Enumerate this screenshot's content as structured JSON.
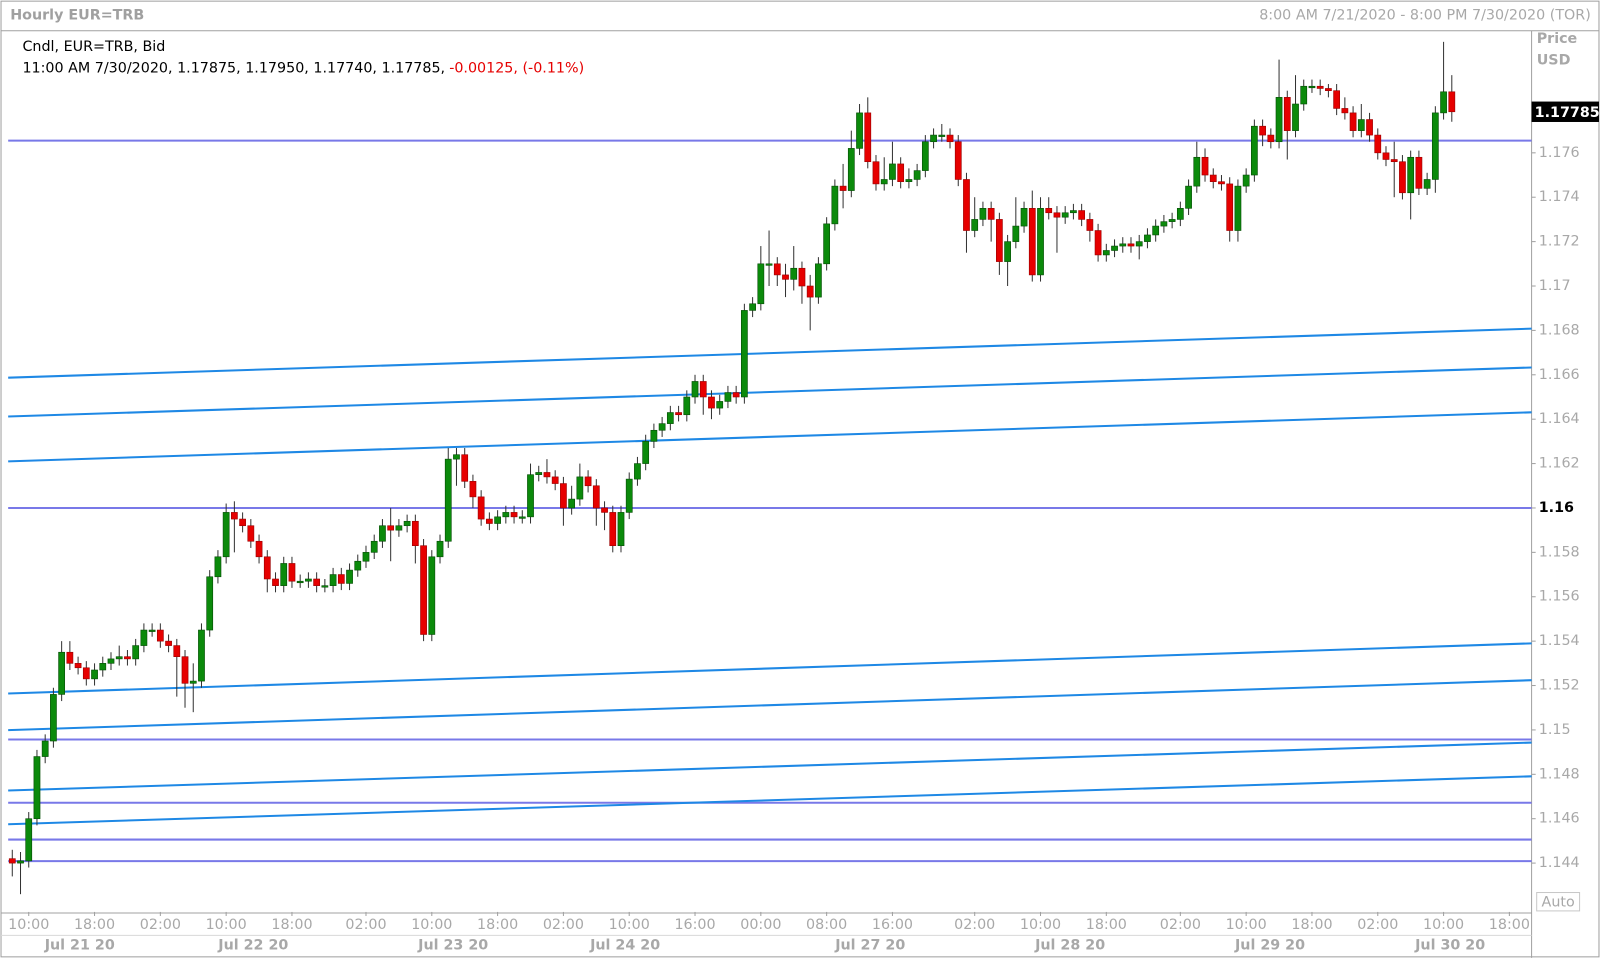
{
  "chart_data": {
    "type": "candlestick",
    "title": "Hourly EUR=TRB",
    "range": "8:00 AM 7/21/2020 - 8:00 PM 7/30/2020 (TOR)",
    "legend_line1": "Cndl, EUR=TRB, Bid",
    "legend_line2": "11:00 AM 7/30/2020, 1.17875, 1.17950, 1.17740, 1.17785,",
    "legend_change": "-0.00125, (-0.11%)",
    "axis_title": "Price",
    "axis_unit": "USD",
    "auto_button": "Auto",
    "up_color": "#0b8a0b",
    "down_color": "#e60000",
    "hline_color": "#7878e8",
    "trend_color": "#1e88e5",
    "ylim": [
      1.1418,
      1.1815
    ],
    "yticks": [
      1.144,
      1.146,
      1.148,
      1.15,
      1.152,
      1.154,
      1.156,
      1.158,
      1.16,
      1.162,
      1.164,
      1.166,
      1.168,
      1.17,
      1.172,
      1.174,
      1.176
    ],
    "xlim": [
      -0.5,
      184.7
    ],
    "xticks": [
      {
        "value": 2,
        "label": "10:00"
      },
      {
        "value": 10,
        "label": "18:00"
      },
      {
        "value": 18,
        "label": "02:00"
      },
      {
        "value": 26,
        "label": "10:00"
      },
      {
        "value": 34,
        "label": "18:00"
      },
      {
        "value": 43,
        "label": "02:00"
      },
      {
        "value": 51,
        "label": "10:00"
      },
      {
        "value": 59,
        "label": "18:00"
      },
      {
        "value": 67,
        "label": "02:00"
      },
      {
        "value": 75,
        "label": "10:00"
      },
      {
        "value": 83,
        "label": "16:00"
      },
      {
        "value": 91,
        "label": "00:00"
      },
      {
        "value": 99,
        "label": "08:00"
      },
      {
        "value": 107,
        "label": "16:00"
      },
      {
        "value": 117,
        "label": "02:00"
      },
      {
        "value": 125,
        "label": "10:00"
      },
      {
        "value": 133,
        "label": "18:00"
      },
      {
        "value": 142,
        "label": "02:00"
      },
      {
        "value": 150,
        "label": "10:00"
      },
      {
        "value": 158,
        "label": "18:00"
      },
      {
        "value": 166,
        "label": "02:00"
      },
      {
        "value": 174,
        "label": "10:00"
      },
      {
        "value": 182,
        "label": "18:00"
      }
    ],
    "date_ticks": [
      {
        "value": 8.2,
        "label": "Jul 21 20"
      },
      {
        "value": 29.3,
        "label": "Jul 22 20"
      },
      {
        "value": 53.6,
        "label": "Jul 23 20"
      },
      {
        "value": 74.5,
        "label": "Jul 24 20"
      },
      {
        "value": 104.3,
        "label": "Jul 27 20"
      },
      {
        "value": 128.6,
        "label": "Jul 28 20"
      },
      {
        "value": 152.9,
        "label": "Jul 29 20"
      },
      {
        "value": 174.8,
        "label": "Jul 30 20"
      }
    ],
    "horizontal_lines": [
      1.17655,
      1.16,
      1.14957,
      1.14672,
      1.14506,
      1.14409
    ],
    "trend_lines": [
      [
        1.16587,
        1.16808
      ],
      [
        1.16412,
        1.16633
      ],
      [
        1.1621,
        1.16431
      ],
      [
        1.15164,
        1.1539
      ],
      [
        1.14999,
        1.15224
      ],
      [
        1.14727,
        1.14943
      ],
      [
        1.14575,
        1.14791
      ]
    ],
    "ohlc": [
      [
        1.1442,
        1.1446,
        1.1434,
        1.144
      ],
      [
        1.144,
        1.1445,
        1.1426,
        1.1441
      ],
      [
        1.1441,
        1.1463,
        1.1438,
        1.146
      ],
      [
        1.146,
        1.1491,
        1.1457,
        1.1488
      ],
      [
        1.1488,
        1.1498,
        1.1485,
        1.1495
      ],
      [
        1.1495,
        1.1519,
        1.1492,
        1.1516
      ],
      [
        1.1516,
        1.154,
        1.1513,
        1.1535
      ],
      [
        1.1535,
        1.154,
        1.1527,
        1.153
      ],
      [
        1.153,
        1.1533,
        1.1525,
        1.1528
      ],
      [
        1.1528,
        1.1531,
        1.152,
        1.1523
      ],
      [
        1.1523,
        1.153,
        1.152,
        1.1527
      ],
      [
        1.1527,
        1.1533,
        1.1524,
        1.153
      ],
      [
        1.153,
        1.1535,
        1.1527,
        1.1532
      ],
      [
        1.1532,
        1.1538,
        1.1529,
        1.1533
      ],
      [
        1.1533,
        1.1536,
        1.1529,
        1.1532
      ],
      [
        1.1532,
        1.1541,
        1.1529,
        1.1538
      ],
      [
        1.1538,
        1.1548,
        1.1535,
        1.1545
      ],
      [
        1.1545,
        1.1548,
        1.1542,
        1.1545
      ],
      [
        1.1545,
        1.1548,
        1.1537,
        1.154
      ],
      [
        1.154,
        1.1543,
        1.1535,
        1.1538
      ],
      [
        1.1538,
        1.1541,
        1.1515,
        1.1533
      ],
      [
        1.1533,
        1.1536,
        1.151,
        1.1521
      ],
      [
        1.1521,
        1.153,
        1.1508,
        1.1522
      ],
      [
        1.1522,
        1.1548,
        1.1519,
        1.1545
      ],
      [
        1.1545,
        1.1572,
        1.1542,
        1.1569
      ],
      [
        1.1569,
        1.1581,
        1.1566,
        1.1578
      ],
      [
        1.1578,
        1.1602,
        1.1575,
        1.1598
      ],
      [
        1.1598,
        1.1603,
        1.158,
        1.1595
      ],
      [
        1.1595,
        1.1598,
        1.1589,
        1.1592
      ],
      [
        1.1592,
        1.1595,
        1.1582,
        1.1585
      ],
      [
        1.1585,
        1.1588,
        1.1575,
        1.1578
      ],
      [
        1.1578,
        1.1581,
        1.1562,
        1.1568
      ],
      [
        1.1568,
        1.1571,
        1.1562,
        1.1565
      ],
      [
        1.1565,
        1.1578,
        1.1562,
        1.1575
      ],
      [
        1.1575,
        1.1578,
        1.1564,
        1.1567
      ],
      [
        1.1567,
        1.157,
        1.1564,
        1.1567
      ],
      [
        1.1567,
        1.1571,
        1.1564,
        1.1568
      ],
      [
        1.1568,
        1.1571,
        1.1562,
        1.1565
      ],
      [
        1.1565,
        1.1568,
        1.1562,
        1.1565
      ],
      [
        1.1565,
        1.1573,
        1.1562,
        1.157
      ],
      [
        1.157,
        1.1573,
        1.1563,
        1.1566
      ],
      [
        1.1566,
        1.1575,
        1.1563,
        1.1572
      ],
      [
        1.1572,
        1.1579,
        1.1569,
        1.1576
      ],
      [
        1.1576,
        1.1583,
        1.1573,
        1.158
      ],
      [
        1.158,
        1.1588,
        1.1577,
        1.1585
      ],
      [
        1.1585,
        1.1595,
        1.1582,
        1.1592
      ],
      [
        1.1592,
        1.16,
        1.1576,
        1.159
      ],
      [
        1.159,
        1.1595,
        1.1587,
        1.1592
      ],
      [
        1.1592,
        1.1597,
        1.1589,
        1.1594
      ],
      [
        1.1594,
        1.1597,
        1.1575,
        1.1583
      ],
      [
        1.1583,
        1.1586,
        1.154,
        1.1543
      ],
      [
        1.1543,
        1.1581,
        1.154,
        1.1578
      ],
      [
        1.1578,
        1.1588,
        1.1575,
        1.1585
      ],
      [
        1.1585,
        1.1627,
        1.1582,
        1.1622
      ],
      [
        1.1622,
        1.1627,
        1.161,
        1.1624
      ],
      [
        1.1624,
        1.1627,
        1.1609,
        1.1612
      ],
      [
        1.1612,
        1.1615,
        1.16,
        1.1605
      ],
      [
        1.1605,
        1.1608,
        1.1592,
        1.1595
      ],
      [
        1.1595,
        1.1598,
        1.159,
        1.1593
      ],
      [
        1.1593,
        1.1599,
        1.159,
        1.1596
      ],
      [
        1.1596,
        1.1601,
        1.1593,
        1.1598
      ],
      [
        1.1598,
        1.1601,
        1.1593,
        1.1596
      ],
      [
        1.1596,
        1.1599,
        1.1593,
        1.1596
      ],
      [
        1.1596,
        1.162,
        1.1593,
        1.1615
      ],
      [
        1.1615,
        1.1619,
        1.1612,
        1.1616
      ],
      [
        1.1616,
        1.1622,
        1.1611,
        1.1614
      ],
      [
        1.1614,
        1.1617,
        1.1608,
        1.1611
      ],
      [
        1.1611,
        1.1614,
        1.1592,
        1.16
      ],
      [
        1.16,
        1.161,
        1.1597,
        1.1604
      ],
      [
        1.1604,
        1.162,
        1.1601,
        1.1614
      ],
      [
        1.1614,
        1.1617,
        1.1607,
        1.161
      ],
      [
        1.161,
        1.1613,
        1.1592,
        1.16
      ],
      [
        1.16,
        1.1603,
        1.159,
        1.1598
      ],
      [
        1.1598,
        1.1601,
        1.158,
        1.1583
      ],
      [
        1.1583,
        1.1601,
        1.158,
        1.1598
      ],
      [
        1.1598,
        1.1616,
        1.1595,
        1.1613
      ],
      [
        1.1613,
        1.1623,
        1.161,
        1.162
      ],
      [
        1.162,
        1.1633,
        1.1617,
        1.163
      ],
      [
        1.163,
        1.1638,
        1.1627,
        1.1635
      ],
      [
        1.1635,
        1.1641,
        1.1632,
        1.1638
      ],
      [
        1.1638,
        1.1646,
        1.1635,
        1.1643
      ],
      [
        1.1643,
        1.1646,
        1.1639,
        1.1642
      ],
      [
        1.1642,
        1.1653,
        1.1639,
        1.165
      ],
      [
        1.165,
        1.166,
        1.1647,
        1.1657
      ],
      [
        1.1657,
        1.166,
        1.1642,
        1.165
      ],
      [
        1.165,
        1.1653,
        1.164,
        1.1645
      ],
      [
        1.1645,
        1.1651,
        1.1642,
        1.1648
      ],
      [
        1.1648,
        1.1655,
        1.1645,
        1.1652
      ],
      [
        1.1652,
        1.1655,
        1.1647,
        1.165
      ],
      [
        1.165,
        1.1692,
        1.1647,
        1.1689
      ],
      [
        1.1689,
        1.1695,
        1.1686,
        1.1692
      ],
      [
        1.1692,
        1.1718,
        1.1689,
        1.171
      ],
      [
        1.171,
        1.1725,
        1.17,
        1.171
      ],
      [
        1.171,
        1.1713,
        1.17,
        1.1705
      ],
      [
        1.1705,
        1.171,
        1.1695,
        1.1703
      ],
      [
        1.1703,
        1.1718,
        1.1698,
        1.1708
      ],
      [
        1.1708,
        1.1711,
        1.1692,
        1.17
      ],
      [
        1.17,
        1.1705,
        1.168,
        1.1695
      ],
      [
        1.1695,
        1.1713,
        1.1692,
        1.171
      ],
      [
        1.171,
        1.1731,
        1.1707,
        1.1728
      ],
      [
        1.1728,
        1.1748,
        1.1725,
        1.1745
      ],
      [
        1.1745,
        1.1755,
        1.1735,
        1.1743
      ],
      [
        1.1743,
        1.177,
        1.174,
        1.1762
      ],
      [
        1.1762,
        1.1782,
        1.1759,
        1.1778
      ],
      [
        1.1778,
        1.1785,
        1.1753,
        1.1756
      ],
      [
        1.1756,
        1.1759,
        1.1743,
        1.1746
      ],
      [
        1.1746,
        1.1758,
        1.1743,
        1.1748
      ],
      [
        1.1748,
        1.1765,
        1.1745,
        1.1755
      ],
      [
        1.1755,
        1.1758,
        1.1744,
        1.1747
      ],
      [
        1.1747,
        1.1753,
        1.1744,
        1.1748
      ],
      [
        1.1748,
        1.1755,
        1.1745,
        1.1752
      ],
      [
        1.1752,
        1.1768,
        1.1749,
        1.1765
      ],
      [
        1.1765,
        1.1771,
        1.1762,
        1.1768
      ],
      [
        1.1768,
        1.1773,
        1.1765,
        1.1768
      ],
      [
        1.1768,
        1.1771,
        1.1762,
        1.1765
      ],
      [
        1.1765,
        1.1768,
        1.1745,
        1.1748
      ],
      [
        1.1748,
        1.1751,
        1.1715,
        1.1725
      ],
      [
        1.1725,
        1.174,
        1.1722,
        1.173
      ],
      [
        1.173,
        1.1738,
        1.1727,
        1.1735
      ],
      [
        1.1735,
        1.1738,
        1.172,
        1.173
      ],
      [
        1.173,
        1.1733,
        1.1705,
        1.1711
      ],
      [
        1.1711,
        1.1723,
        1.17,
        1.172
      ],
      [
        1.172,
        1.174,
        1.1717,
        1.1727
      ],
      [
        1.1727,
        1.1738,
        1.1724,
        1.1735
      ],
      [
        1.1735,
        1.1743,
        1.1702,
        1.1705
      ],
      [
        1.1705,
        1.174,
        1.1702,
        1.1735
      ],
      [
        1.1735,
        1.174,
        1.173,
        1.1733
      ],
      [
        1.1733,
        1.1736,
        1.1715,
        1.1731
      ],
      [
        1.1731,
        1.1736,
        1.1728,
        1.1733
      ],
      [
        1.1733,
        1.1737,
        1.173,
        1.1734
      ],
      [
        1.1734,
        1.1737,
        1.1727,
        1.173
      ],
      [
        1.173,
        1.1733,
        1.172,
        1.1725
      ],
      [
        1.1725,
        1.1728,
        1.1711,
        1.1714
      ],
      [
        1.1714,
        1.1719,
        1.1711,
        1.1716
      ],
      [
        1.1716,
        1.1721,
        1.1713,
        1.1718
      ],
      [
        1.1718,
        1.1722,
        1.1715,
        1.1719
      ],
      [
        1.1719,
        1.1722,
        1.1715,
        1.1718
      ],
      [
        1.1718,
        1.1723,
        1.1712,
        1.172
      ],
      [
        1.172,
        1.1726,
        1.1717,
        1.1723
      ],
      [
        1.1723,
        1.173,
        1.172,
        1.1727
      ],
      [
        1.1727,
        1.1732,
        1.1724,
        1.1729
      ],
      [
        1.1729,
        1.1733,
        1.1726,
        1.173
      ],
      [
        1.173,
        1.1738,
        1.1727,
        1.1735
      ],
      [
        1.1735,
        1.1748,
        1.1732,
        1.1745
      ],
      [
        1.1745,
        1.1765,
        1.1742,
        1.1758
      ],
      [
        1.1758,
        1.1762,
        1.1747,
        1.175
      ],
      [
        1.175,
        1.1753,
        1.1744,
        1.1747
      ],
      [
        1.1747,
        1.175,
        1.1743,
        1.1746
      ],
      [
        1.1746,
        1.1749,
        1.172,
        1.1725
      ],
      [
        1.1725,
        1.1748,
        1.172,
        1.1745
      ],
      [
        1.1745,
        1.1753,
        1.1742,
        1.175
      ],
      [
        1.175,
        1.1775,
        1.1747,
        1.1772
      ],
      [
        1.1772,
        1.1775,
        1.1763,
        1.1768
      ],
      [
        1.1768,
        1.1771,
        1.1762,
        1.1765
      ],
      [
        1.1765,
        1.1802,
        1.1762,
        1.1785
      ],
      [
        1.1785,
        1.1788,
        1.1757,
        1.177
      ],
      [
        1.177,
        1.1795,
        1.1767,
        1.1782
      ],
      [
        1.1782,
        1.1793,
        1.1779,
        1.179
      ],
      [
        1.179,
        1.1793,
        1.1787,
        1.179
      ],
      [
        1.179,
        1.1793,
        1.1786,
        1.1789
      ],
      [
        1.1789,
        1.1791,
        1.1785,
        1.1788
      ],
      [
        1.1788,
        1.1791,
        1.1777,
        1.178
      ],
      [
        1.178,
        1.1785,
        1.1775,
        1.1778
      ],
      [
        1.1778,
        1.1781,
        1.1767,
        1.177
      ],
      [
        1.177,
        1.1782,
        1.1767,
        1.1775
      ],
      [
        1.1775,
        1.1778,
        1.1765,
        1.1768
      ],
      [
        1.1768,
        1.1771,
        1.1757,
        1.176
      ],
      [
        1.176,
        1.1763,
        1.1754,
        1.1757
      ],
      [
        1.1757,
        1.1765,
        1.174,
        1.1756
      ],
      [
        1.1756,
        1.1759,
        1.1739,
        1.1742
      ],
      [
        1.1742,
        1.1761,
        1.173,
        1.1758
      ],
      [
        1.1758,
        1.1761,
        1.1741,
        1.1744
      ],
      [
        1.1744,
        1.1751,
        1.1741,
        1.1748
      ],
      [
        1.1748,
        1.1781,
        1.1742,
        1.1778
      ],
      [
        1.1778,
        1.181,
        1.1775,
        1.17875
      ],
      [
        1.17875,
        1.1795,
        1.1774,
        1.17785
      ]
    ]
  }
}
